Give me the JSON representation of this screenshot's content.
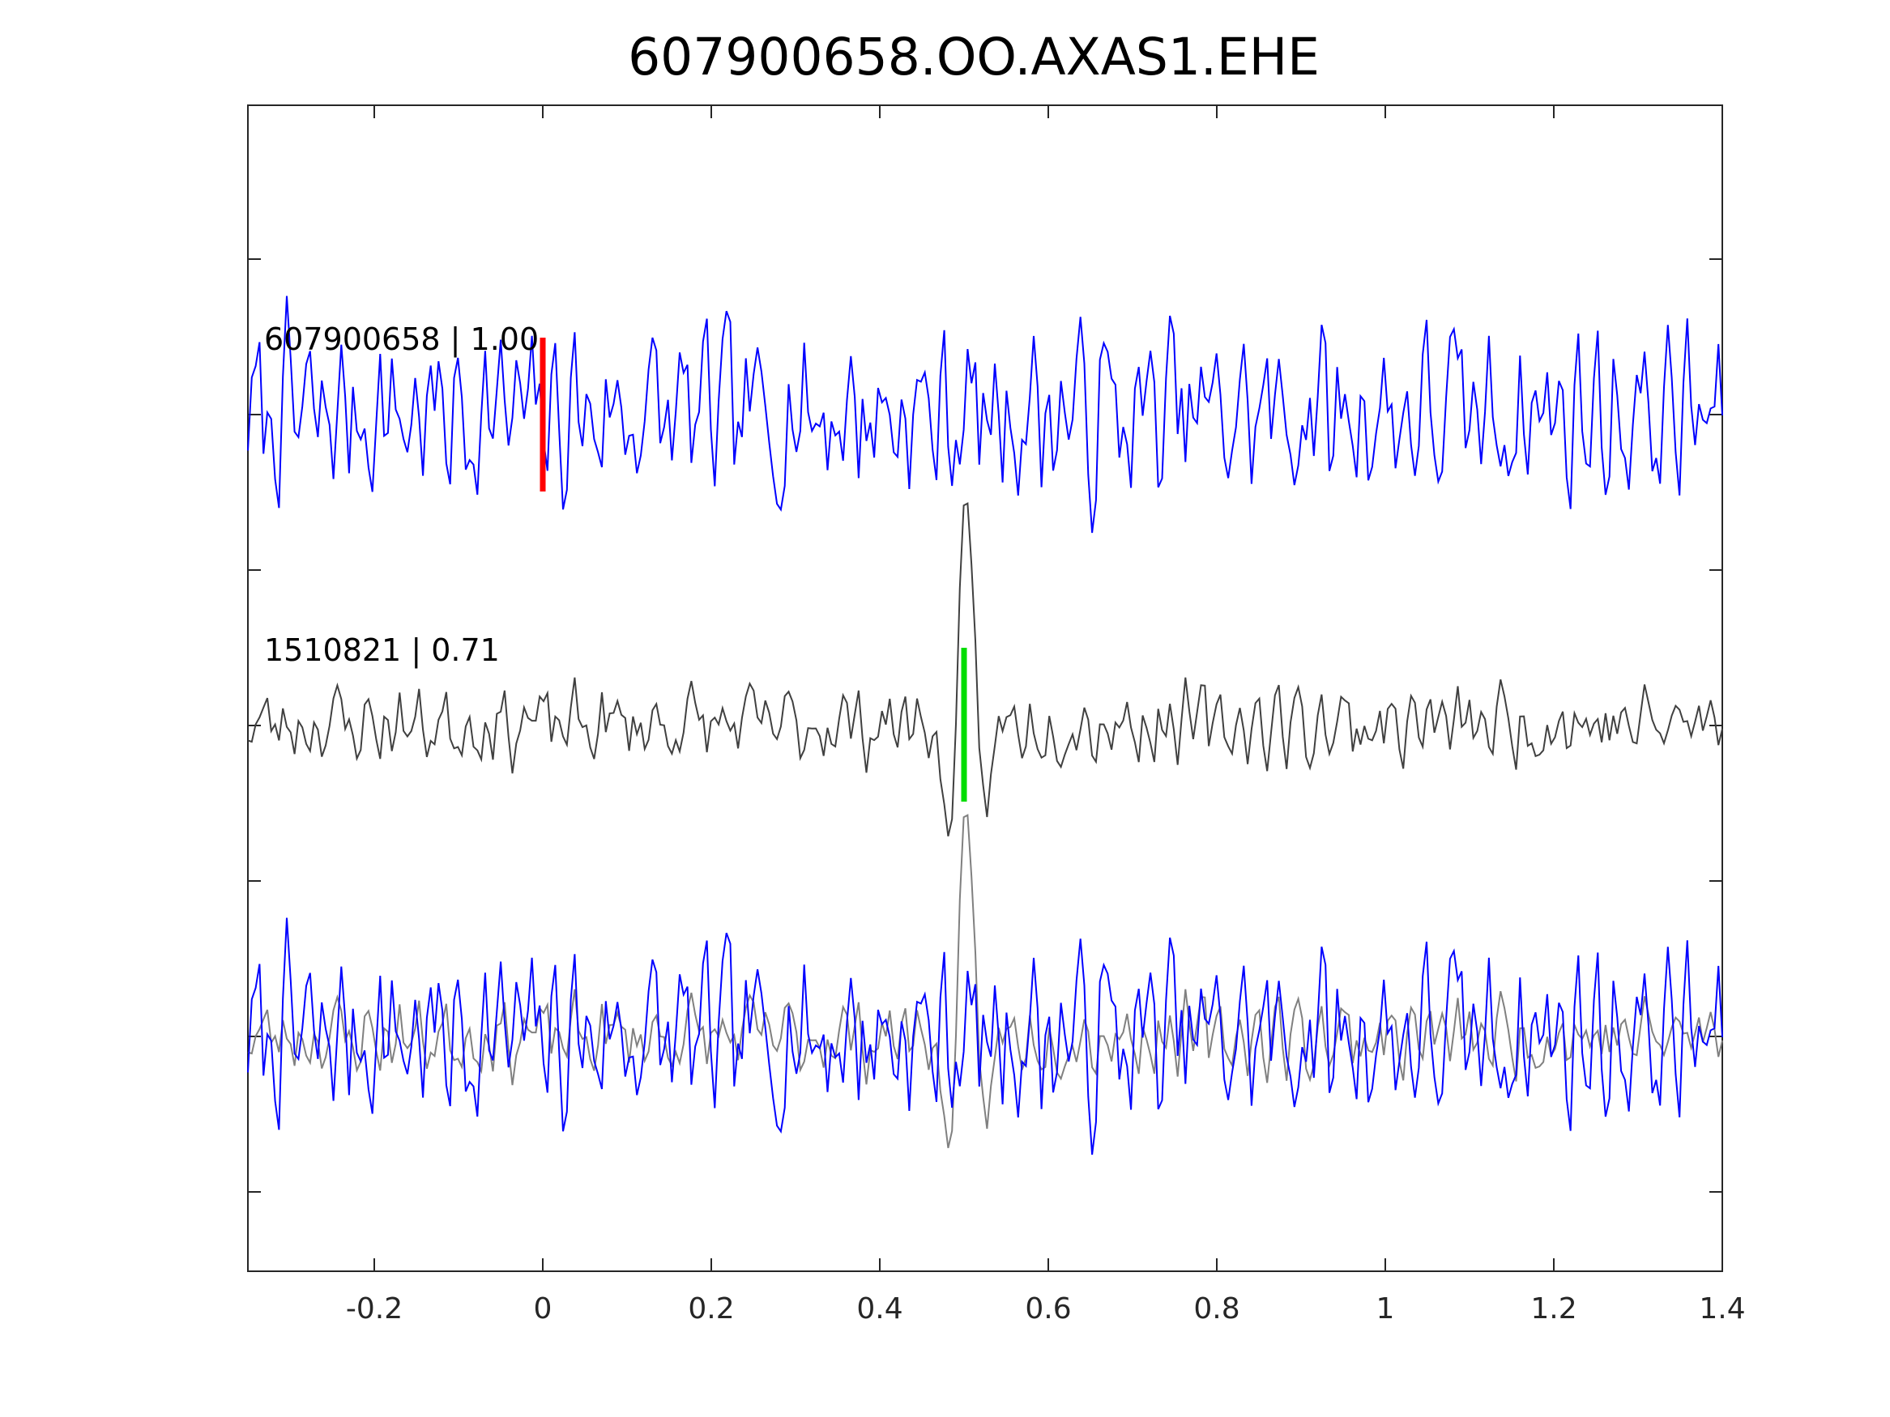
{
  "chart_data": {
    "type": "line",
    "title": "607900658.OO.AXAS1.EHE",
    "xlabel": "",
    "ylabel": "",
    "xlim": [
      -0.35,
      1.4
    ],
    "x_ticks": [
      -0.2,
      0,
      0.2,
      0.4,
      0.6,
      0.8,
      1,
      1.2,
      1.4
    ],
    "x_tick_labels": [
      "-0.2",
      "0",
      "0.2",
      "0.4",
      "0.6",
      "0.8",
      "1",
      "1.2",
      "1.4"
    ],
    "y_tick_count": 7,
    "grid": false,
    "colors": {
      "blue_trace": "#0000ff",
      "template_trace": "#404040",
      "template_overlay": "#808080",
      "pick_red": "#ff0000",
      "pick_green": "#00dd00",
      "axes": "#262626"
    },
    "traces": [
      {
        "panel": "top",
        "label": "607900658 | 1.00",
        "color": "#0000ff",
        "pick_time": 0.0,
        "pick_color": "#ff0000",
        "seed": 7,
        "noise_amp": 1.0
      },
      {
        "panel": "middle",
        "label": "1510821 | 0.71",
        "color": "#404040",
        "pick_time": 0.5,
        "pick_color": "#00dd00",
        "seed": 23,
        "noise_amp": 0.45
      },
      {
        "panel": "bottom",
        "label": "",
        "overlay": true,
        "description_series": [
          "607900658",
          "1510821"
        ]
      }
    ]
  }
}
